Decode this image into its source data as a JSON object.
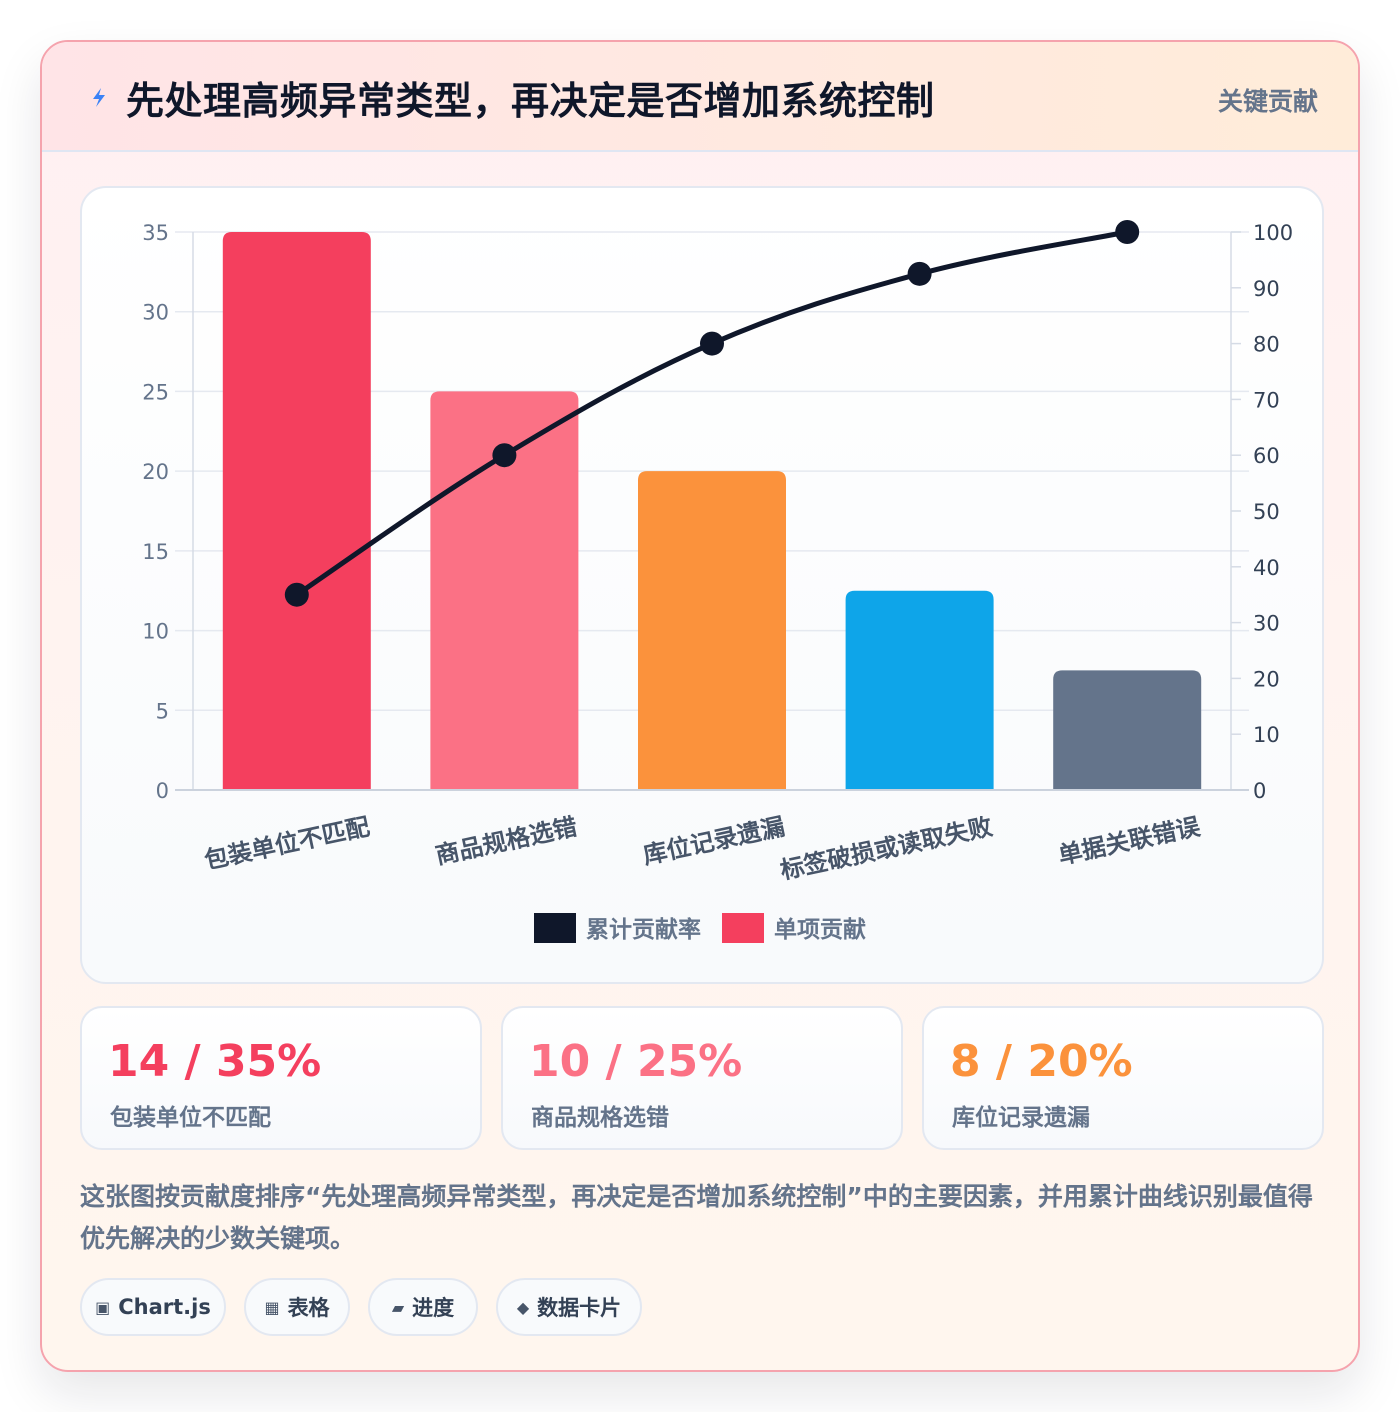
{
  "header": {
    "title": "先处理高频异常类型，再决定是否增加系统控制",
    "tag": "关键贡献"
  },
  "chart_data": {
    "type": "bar",
    "categories": [
      "包装单位不匹配",
      "商品规格选错",
      "库位记录遗漏",
      "标签破损或读取失败",
      "单据关联错误"
    ],
    "series": [
      {
        "name": "单项贡献",
        "type": "bar",
        "axis": "left",
        "values": [
          35,
          25,
          20,
          12.5,
          7.5
        ]
      },
      {
        "name": "累计贡献率",
        "type": "line",
        "axis": "right",
        "values": [
          35,
          60,
          80,
          92.5,
          100
        ]
      }
    ],
    "y_left": {
      "min": 0,
      "max": 35,
      "ticks": [
        0,
        5,
        10,
        15,
        20,
        25,
        30,
        35
      ]
    },
    "y_right": {
      "min": 0,
      "max": 100,
      "ticks": [
        0,
        10,
        20,
        30,
        40,
        50,
        60,
        70,
        80,
        90,
        100
      ]
    },
    "bar_colors": [
      "#f43f5e",
      "#fb7185",
      "#fb923c",
      "#0ea5e9",
      "#64748b"
    ],
    "line_color": "#0f172a",
    "legend": {
      "position": "bottom",
      "items": [
        {
          "label": "累计贡献率",
          "color": "#0f172a"
        },
        {
          "label": "单项贡献",
          "color": "#f43f5e"
        }
      ]
    },
    "grid": true
  },
  "stats": [
    {
      "value": "14 / 35%",
      "label": "包装单位不匹配",
      "color": "#f43f5e"
    },
    {
      "value": "10 / 25%",
      "label": "商品规格选错",
      "color": "#fb7185"
    },
    {
      "value": "8 / 20%",
      "label": "库位记录遗漏",
      "color": "#fb923c"
    }
  ],
  "description": "这张图按贡献度排序“先处理高频异常类型，再决定是否增加系统控制”中的主要因素，并用累计曲线识别最值得优先解决的少数关键项。",
  "chips": [
    {
      "icon": "▣",
      "label": "Chart.js"
    },
    {
      "icon": "▦",
      "label": "表格"
    },
    {
      "icon": "▰",
      "label": "进度"
    },
    {
      "icon": "◆",
      "label": "数据卡片"
    }
  ]
}
